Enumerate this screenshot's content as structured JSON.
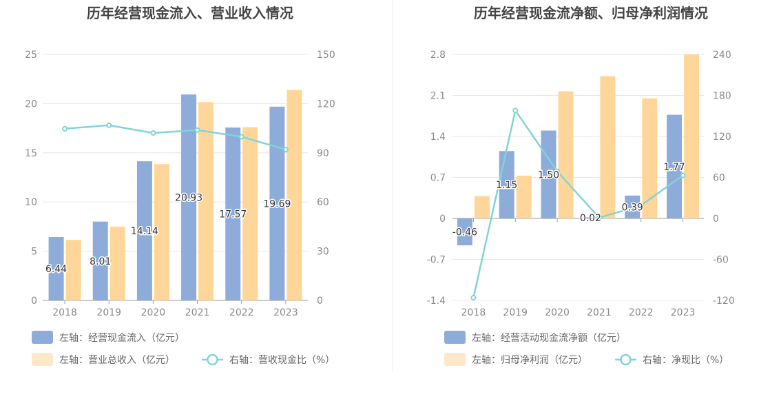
{
  "colors": {
    "bar_primary": "#8eacd9",
    "bar_secondary": "#ffd699",
    "line": "#80d4d8",
    "grid": "#e4e6ef",
    "axis": "#9a9a9a",
    "divider": "#eeeeee"
  },
  "chart_data": [
    {
      "type": "bar",
      "title": "历年经营现金流入、营业收入情况",
      "categories": [
        "2018",
        "2019",
        "2020",
        "2021",
        "2022",
        "2023"
      ],
      "left_axis": {
        "ticks": [
          "0",
          "5",
          "10",
          "15",
          "20",
          "25"
        ],
        "ylim": [
          0,
          25
        ]
      },
      "right_axis": {
        "ticks": [
          "0",
          "30",
          "60",
          "90",
          "120",
          "150"
        ],
        "ylim": [
          0,
          150
        ]
      },
      "grid": true,
      "legend_position": "bottom-left",
      "series": [
        {
          "name": "左轴：经营现金流入（亿元）",
          "type": "bar",
          "axis": "left",
          "values": [
            6.44,
            8.01,
            14.14,
            20.93,
            17.57,
            19.69
          ],
          "labels": [
            "6.44",
            "8.01",
            "14.14",
            "20.93",
            "17.57",
            "19.69"
          ]
        },
        {
          "name": "左轴：营业总收入（亿元）",
          "type": "bar",
          "axis": "left",
          "values": [
            6.15,
            7.5,
            13.85,
            20.15,
            17.6,
            21.4
          ]
        },
        {
          "name": "右轴：营收现金比（%）",
          "type": "line",
          "axis": "right",
          "values": [
            104.7,
            106.8,
            102.1,
            103.9,
            99.8,
            92.0
          ]
        }
      ]
    },
    {
      "type": "bar",
      "title": "历年经营现金流净额、归母净利润情况",
      "categories": [
        "2018",
        "2019",
        "2020",
        "2021",
        "2022",
        "2023"
      ],
      "left_axis": {
        "ticks": [
          "-1.4",
          "-0.7",
          "0",
          "0.7",
          "1.4",
          "2.1",
          "2.8"
        ],
        "ylim": [
          -1.4,
          2.8
        ]
      },
      "right_axis": {
        "ticks": [
          "-120",
          "-60",
          "0",
          "60",
          "120",
          "180",
          "240"
        ],
        "ylim": [
          -120,
          240
        ]
      },
      "grid": true,
      "legend_position": "bottom-left",
      "series": [
        {
          "name": "左轴：经营活动现金流净额（亿元）",
          "type": "bar",
          "axis": "left",
          "values": [
            -0.46,
            1.15,
            1.5,
            0.02,
            0.39,
            1.77
          ],
          "labels": [
            "-0.46",
            "1.15",
            "1.50",
            "0.02",
            "0.39",
            "1.77"
          ]
        },
        {
          "name": "左轴：归母净利润（亿元）",
          "type": "bar",
          "axis": "left",
          "values": [
            0.38,
            0.73,
            2.17,
            2.43,
            2.05,
            2.8
          ]
        },
        {
          "name": "右轴：净现比（%）",
          "type": "line",
          "axis": "right",
          "values": [
            -116.0,
            158.0,
            69.0,
            1.0,
            19.0,
            63.0
          ]
        }
      ]
    }
  ]
}
